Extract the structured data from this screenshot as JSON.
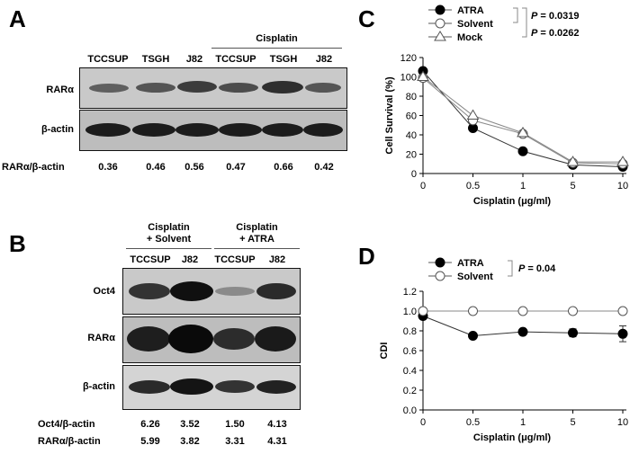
{
  "panels": {
    "A": {
      "letter": "A",
      "group_header": "Cisplatin",
      "lanes": [
        "TCCSUP",
        "TSGH",
        "J82",
        "TCCSUP",
        "TSGH",
        "J82"
      ],
      "rows": [
        "RARα",
        "β-actin"
      ],
      "ratio_label": "RARα/β-actin",
      "ratios": [
        "0.36",
        "0.46",
        "0.56",
        "0.47",
        "0.66",
        "0.42"
      ]
    },
    "B": {
      "letter": "B",
      "group_headers": [
        {
          "line1": "Cisplatin",
          "line2": "+ Solvent"
        },
        {
          "line1": "Cisplatin",
          "line2": "+ ATRA"
        }
      ],
      "lanes": [
        "TCCSUP",
        "J82",
        "TCCSUP",
        "J82"
      ],
      "rows": [
        "Oct4",
        "RARα",
        "β-actin"
      ],
      "ratio_rows": [
        {
          "label": "Oct4/β-actin",
          "values": [
            "6.26",
            "3.52",
            "1.50",
            "4.13"
          ]
        },
        {
          "label": "RARα/β-actin",
          "values": [
            "5.99",
            "3.82",
            "3.31",
            "4.31"
          ]
        }
      ]
    }
  },
  "chart_data": [
    {
      "panel": "C",
      "type": "line",
      "xlabel": "Cisplatin (μg/ml)",
      "ylabel": "Cell Survival (%)",
      "x": [
        "0",
        "0.5",
        "1",
        "5",
        "10"
      ],
      "ylim": [
        0,
        120
      ],
      "yticks": [
        0,
        20,
        40,
        60,
        80,
        100,
        120
      ],
      "series": [
        {
          "name": "ATRA",
          "marker": "filled-circle",
          "values": [
            106,
            47,
            23,
            9,
            7
          ]
        },
        {
          "name": "Solvent",
          "marker": "open-circle",
          "values": [
            99,
            55,
            41,
            11,
            10
          ]
        },
        {
          "name": "Mock",
          "marker": "open-triangle",
          "values": [
            100,
            60,
            42,
            12,
            12
          ]
        }
      ],
      "legend_position": "top",
      "annotations": [
        "P = 0.0319",
        "P = 0.0262"
      ]
    },
    {
      "panel": "D",
      "type": "line",
      "xlabel": "Cisplatin (μg/ml)",
      "ylabel": "CDI",
      "x": [
        "0",
        "0.5",
        "1",
        "5",
        "10"
      ],
      "ylim": [
        0,
        1.2
      ],
      "yticks": [
        "0.0",
        "0.2",
        "0.4",
        "0.6",
        "0.8",
        "1.0",
        "1.2"
      ],
      "series": [
        {
          "name": "ATRA",
          "marker": "filled-circle",
          "values": [
            0.95,
            0.75,
            0.79,
            0.78,
            0.77
          ],
          "errors": [
            0.03,
            0.03,
            0.03,
            0.04,
            0.08
          ]
        },
        {
          "name": "Solvent",
          "marker": "open-circle",
          "values": [
            1.0,
            1.0,
            1.0,
            1.0,
            1.0
          ],
          "errors": [
            0.03,
            0.03,
            0.03,
            0.03,
            0.03
          ]
        }
      ],
      "legend_position": "top",
      "annotations": [
        "P = 0.04"
      ]
    }
  ]
}
